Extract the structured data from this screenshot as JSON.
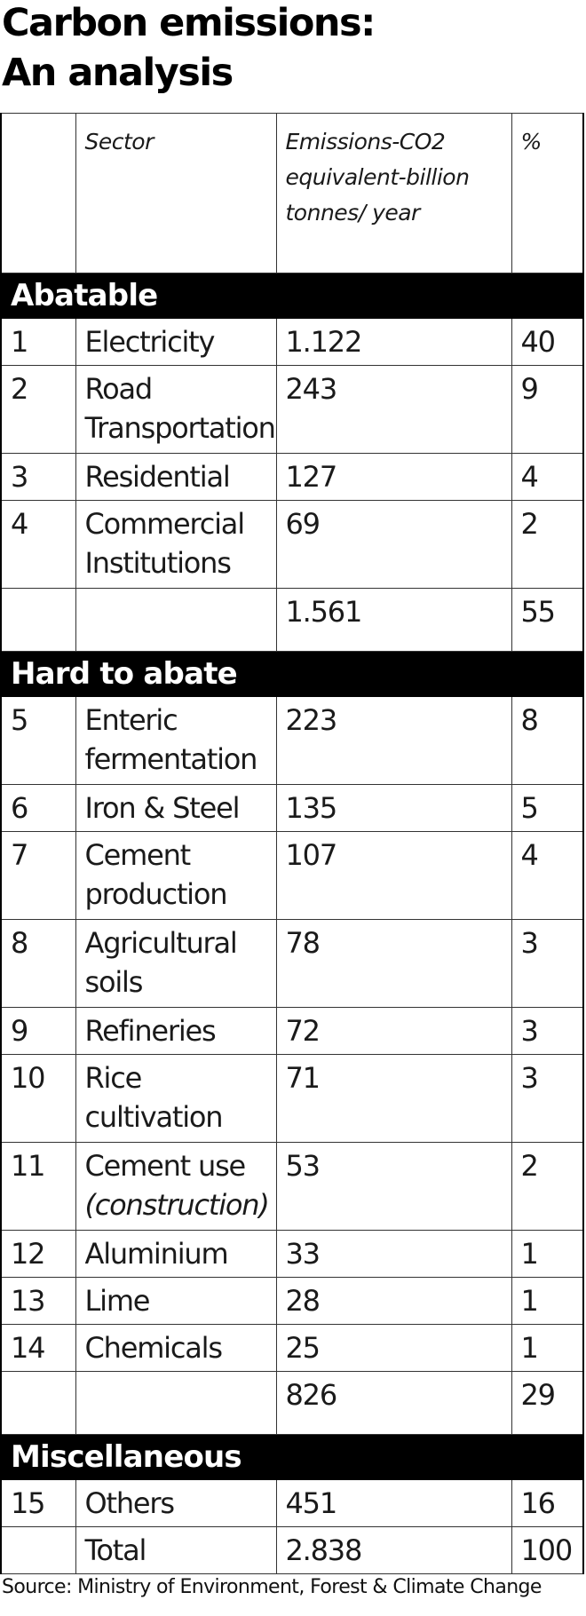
{
  "title": {
    "line1": "Carbon emissions:",
    "line2": "An analysis"
  },
  "columns": {
    "num": "",
    "sector": "Sector",
    "emissions": "Emissions-CO2 equivalent-billion tonnes/ year",
    "pct": "%"
  },
  "sections": [
    {
      "label": "Abatable",
      "rows": [
        {
          "num": "1",
          "sector": "Electricity",
          "emissions": "1.122",
          "pct": "40"
        },
        {
          "num": "2",
          "sector": "Road Transportation",
          "emissions": "243",
          "pct": "9"
        },
        {
          "num": "3",
          "sector": "Residential",
          "emissions": "127",
          "pct": "4"
        },
        {
          "num": "4",
          "sector": "Commercial Institutions",
          "emissions": "69",
          "pct": "2"
        }
      ],
      "subtotal": {
        "emissions": "1.561",
        "pct": "55"
      }
    },
    {
      "label": "Hard to abate",
      "rows": [
        {
          "num": "5",
          "sector": "Enteric fermentation",
          "emissions": "223",
          "pct": "8"
        },
        {
          "num": "6",
          "sector": "Iron & Steel",
          "emissions": "135",
          "pct": "5"
        },
        {
          "num": "7",
          "sector": "Cement production",
          "emissions": "107",
          "pct": "4"
        },
        {
          "num": "8",
          "sector": "Agricultural soils",
          "emissions": "78",
          "pct": "3"
        },
        {
          "num": "9",
          "sector": "Refineries",
          "emissions": "72",
          "pct": "3"
        },
        {
          "num": "10",
          "sector": "Rice cultivation",
          "emissions": "71",
          "pct": "3"
        },
        {
          "num": "11",
          "sector": "Cement use",
          "sector_note": "(construction)",
          "emissions": "53",
          "pct": "2"
        },
        {
          "num": "12",
          "sector": "Aluminium",
          "emissions": "33",
          "pct": "1"
        },
        {
          "num": "13",
          "sector": "Lime",
          "emissions": "28",
          "pct": "1"
        },
        {
          "num": "14",
          "sector": "Chemicals",
          "emissions": "25",
          "pct": "1"
        }
      ],
      "subtotal": {
        "emissions": "826",
        "pct": "29"
      }
    },
    {
      "label": "Miscellaneous",
      "rows": [
        {
          "num": "15",
          "sector": "Others",
          "emissions": "451",
          "pct": "16"
        }
      ],
      "total": {
        "label": "Total",
        "emissions": "2.838",
        "pct": "100"
      }
    }
  ],
  "source": "Source: Ministry of Environment, Forest & Climate Change"
}
